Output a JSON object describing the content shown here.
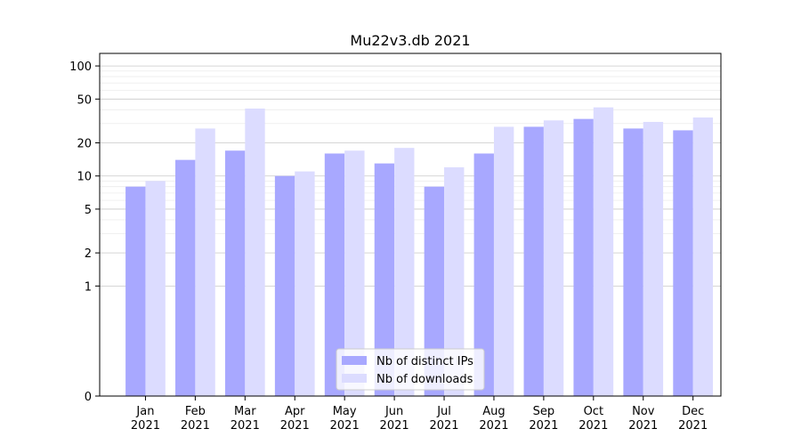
{
  "chart_data": {
    "type": "bar",
    "title": "Mu22v3.db 2021",
    "xlabel": "",
    "ylabel": "",
    "y_scale": "symlog",
    "ylim": [
      0,
      130
    ],
    "yticks": [
      0,
      1,
      2,
      5,
      10,
      20,
      50,
      100
    ],
    "ytick_labels": [
      "0",
      "1",
      "2",
      "5",
      "10",
      "20",
      "50",
      "100"
    ],
    "grid": true,
    "legend_position": "bottom-center",
    "categories": [
      {
        "month": "Jan",
        "year": "2021"
      },
      {
        "month": "Feb",
        "year": "2021"
      },
      {
        "month": "Mar",
        "year": "2021"
      },
      {
        "month": "Apr",
        "year": "2021"
      },
      {
        "month": "May",
        "year": "2021"
      },
      {
        "month": "Jun",
        "year": "2021"
      },
      {
        "month": "Jul",
        "year": "2021"
      },
      {
        "month": "Aug",
        "year": "2021"
      },
      {
        "month": "Sep",
        "year": "2021"
      },
      {
        "month": "Oct",
        "year": "2021"
      },
      {
        "month": "Nov",
        "year": "2021"
      },
      {
        "month": "Dec",
        "year": "2021"
      }
    ],
    "series": [
      {
        "name": "Nb of distinct IPs",
        "color": "#a8a8ff",
        "values": [
          8,
          14,
          17,
          10,
          16,
          13,
          8,
          16,
          28,
          33,
          27,
          26
        ]
      },
      {
        "name": "Nb of downloads",
        "color": "#dcdcff",
        "values": [
          9,
          27,
          41,
          11,
          17,
          18,
          12,
          28,
          32,
          42,
          31,
          34
        ]
      }
    ]
  }
}
